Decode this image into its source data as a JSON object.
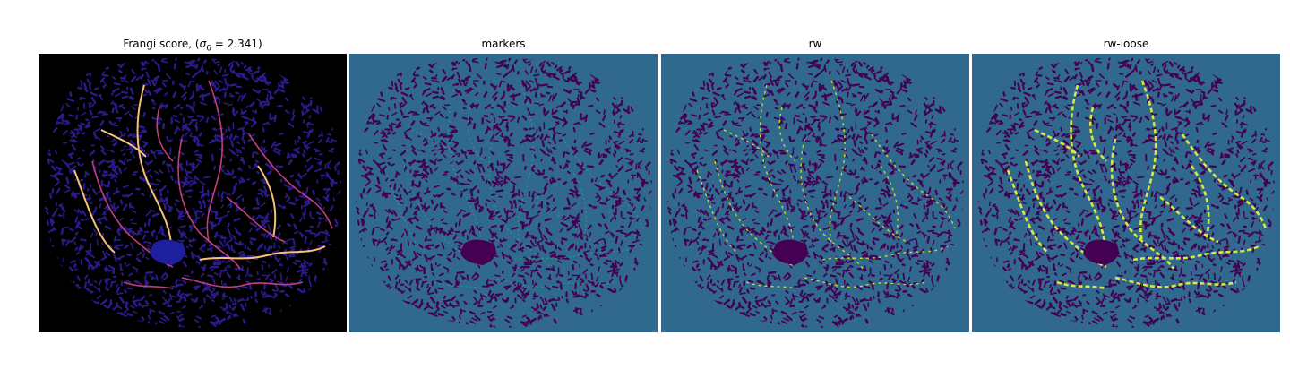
{
  "figure": {
    "panels": [
      {
        "id": "frangi",
        "title_prefix": "Frangi score, (",
        "title_sigma": "σ",
        "title_sub": "6",
        "title_suffix": " = 2.341)",
        "background_color": "#000000",
        "cells_color": "#2a1a8c",
        "vessel_color": "#c23f7c",
        "highlight_color": "#f9c07a",
        "center_blob_color": "#1d1f9e"
      },
      {
        "id": "markers",
        "title": "markers",
        "background_color": "#31688e",
        "cells_color": "#440154",
        "vessel_color": "#35b779",
        "center_blob_color": "#440154"
      },
      {
        "id": "rw",
        "title": "rw",
        "background_color": "#31688e",
        "cells_color": "#440154",
        "vessel_color": "#bddf26",
        "center_blob_color": "#440154"
      },
      {
        "id": "rw-loose",
        "title": "rw-loose",
        "background_color": "#31688e",
        "cells_color": "#440154",
        "vessel_color": "#d7ea3b",
        "center_blob_color": "#440154"
      }
    ]
  }
}
